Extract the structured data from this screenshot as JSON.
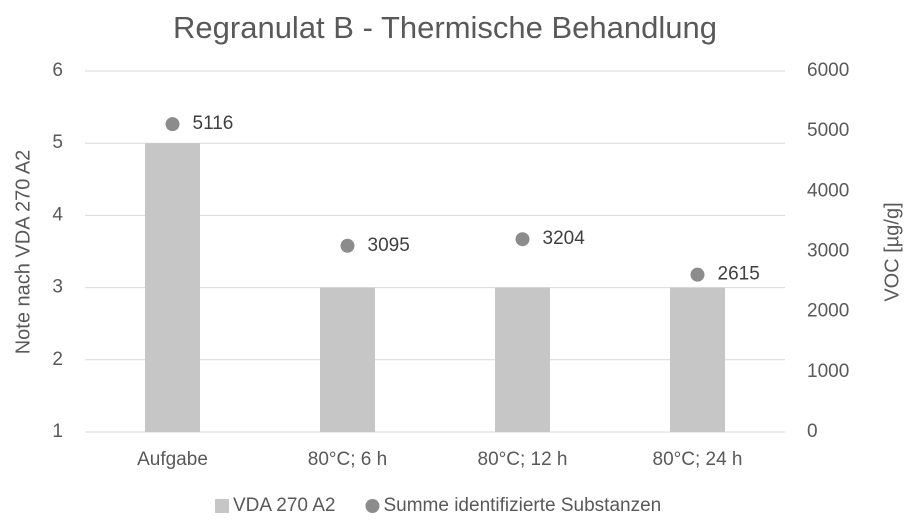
{
  "chart_data": {
    "type": "bar",
    "title": "Regranulat B - Thermische Behandlung",
    "y_label": "Note nach VDA 270 A2",
    "y2_label": "VOC [µg/g]",
    "categories": [
      "Aufgabe",
      "80°C; 6 h",
      "80°C; 12 h",
      "80°C; 24 h"
    ],
    "series": [
      {
        "name": "VDA 270 A2",
        "type": "bar",
        "color": "#c6c6c6",
        "values": [
          5,
          3,
          3,
          3
        ]
      },
      {
        "name": "Summe identifizierte Substanzen",
        "type": "scatter",
        "axis": "y2",
        "color": "#8c8c8c",
        "values": [
          5116,
          3095,
          3204,
          2615
        ]
      }
    ],
    "ylim": [
      1,
      6
    ],
    "yticks": [
      1,
      2,
      3,
      4,
      5,
      6
    ],
    "y2lim": [
      0,
      6000
    ],
    "y2ticks": [
      0,
      1000,
      2000,
      3000,
      4000,
      5000,
      6000
    ],
    "grid": true,
    "legend": "bottom"
  }
}
